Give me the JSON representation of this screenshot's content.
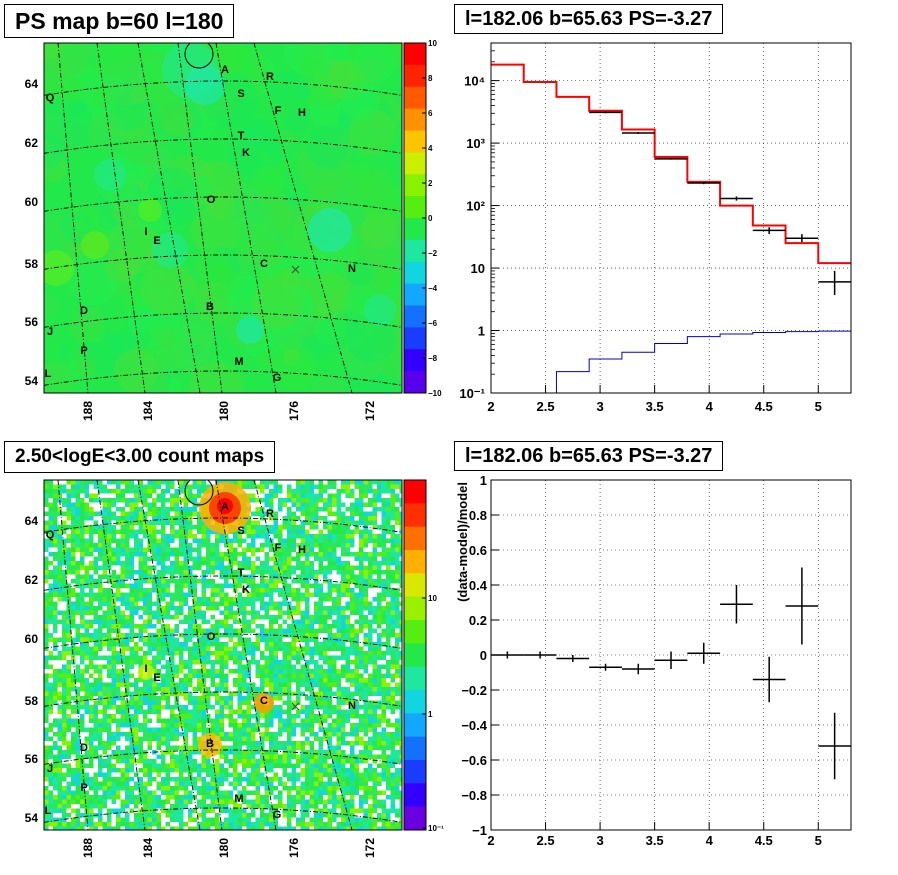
{
  "titles": {
    "top_left": "PS map b=60 l=180",
    "top_right": "l=182.06 b=65.63 PS=-3.27",
    "bottom_left": "2.50<logE<3.00 count maps",
    "bottom_right": "l=182.06 b=65.63 PS=-3.27"
  },
  "colors": {
    "map_background_ps": "#22e84a",
    "model_line": "#ff0000",
    "exposure_line": "#0000cc",
    "data_marker": "#000000"
  },
  "sky_labels": [
    "A",
    "R",
    "S",
    "Q",
    "F",
    "H",
    "T",
    "K",
    "O",
    "I",
    "E",
    "C",
    "N",
    "D",
    "B",
    "J",
    "P",
    "M",
    "L",
    "G"
  ],
  "chart_data": [
    {
      "type": "heatmap",
      "title": "PS map b=60 l=180",
      "x_ticks": [
        "188",
        "184",
        "180",
        "176",
        "172"
      ],
      "y_ticks": [
        "54",
        "56",
        "58",
        "60",
        "62",
        "64"
      ],
      "colorbar_ticks": [
        "10",
        "8",
        "6",
        "4",
        "2",
        "0",
        "−2",
        "−4",
        "−6",
        "−8",
        "−10"
      ],
      "colorbar_range": [
        -10,
        10
      ],
      "background_value": 0.5
    },
    {
      "type": "line",
      "title": "l=182.06 b=65.63 PS=-3.27",
      "yscale": "log",
      "xlim": [
        2,
        5.3
      ],
      "ylim": [
        0.1,
        40000
      ],
      "x_ticks": [
        "2",
        "2.5",
        "3",
        "3.5",
        "4",
        "4.5",
        "5"
      ],
      "y_ticks": [
        "10⁻¹",
        "1",
        "10",
        "10²",
        "10³",
        "10⁴"
      ],
      "grid": true,
      "series": [
        {
          "kind": "step",
          "edges": [
            2.0,
            2.3,
            2.6,
            2.9,
            3.2,
            3.5,
            3.8,
            4.1,
            4.4,
            4.7,
            5.0,
            5.3
          ],
          "values": [
            18000,
            9500,
            5500,
            3300,
            1650,
            600,
            240,
            100,
            48,
            25,
            12
          ]
        },
        {
          "kind": "step",
          "edges": [
            2.0,
            2.3,
            2.6,
            2.9,
            3.2,
            3.5,
            3.8,
            4.1,
            4.4,
            4.7,
            5.0,
            5.3
          ],
          "values": [
            0.07,
            0.1,
            0.22,
            0.35,
            0.45,
            0.62,
            0.8,
            0.88,
            0.93,
            0.96,
            0.98
          ]
        },
        {
          "kind": "errorbars",
          "x": [
            3.05,
            3.35,
            3.65,
            3.95,
            4.25,
            4.55,
            4.85,
            5.15
          ],
          "y": [
            3100,
            1450,
            560,
            230,
            130,
            40,
            30,
            6
          ],
          "xerr": [
            0.15,
            0.15,
            0.15,
            0.15,
            0.15,
            0.15,
            0.15,
            0.15
          ],
          "ylow": [
            3000,
            1400,
            545,
            220,
            120,
            35,
            26,
            3.7
          ],
          "yhigh": [
            3200,
            1500,
            575,
            240,
            140,
            45,
            35,
            9
          ]
        }
      ]
    },
    {
      "type": "heatmap",
      "title": "2.50<logE<3.00 count maps",
      "x_ticks": [
        "188",
        "184",
        "180",
        "176",
        "172"
      ],
      "y_ticks": [
        "54",
        "56",
        "58",
        "60",
        "62",
        "64"
      ],
      "colorbar_ticks": [
        "10",
        "1",
        "10⁻¹"
      ],
      "colorbar_scale": "log"
    },
    {
      "type": "scatter",
      "title": "l=182.06 b=65.63 PS=-3.27",
      "ylabel": "(data-model)/model",
      "xlim": [
        2,
        5.3
      ],
      "ylim": [
        -1,
        1
      ],
      "x_ticks": [
        "2",
        "2.5",
        "3",
        "3.5",
        "4",
        "4.5",
        "5"
      ],
      "y_ticks": [
        "−1",
        "−0.8",
        "−0.6",
        "−0.4",
        "−0.2",
        "0",
        "0.2",
        "0.4",
        "0.6",
        "0.8",
        "1"
      ],
      "grid": true,
      "points": [
        {
          "x": 2.15,
          "y": 0.0,
          "xerr": 0.15,
          "yerr": 0.02
        },
        {
          "x": 2.45,
          "y": 0.0,
          "xerr": 0.15,
          "yerr": 0.02
        },
        {
          "x": 2.75,
          "y": -0.02,
          "xerr": 0.15,
          "yerr": 0.02
        },
        {
          "x": 3.05,
          "y": -0.07,
          "xerr": 0.15,
          "yerr": 0.02
        },
        {
          "x": 3.35,
          "y": -0.08,
          "xerr": 0.15,
          "yerr": 0.03
        },
        {
          "x": 3.65,
          "y": -0.03,
          "xerr": 0.15,
          "yerr": 0.05
        },
        {
          "x": 3.95,
          "y": 0.01,
          "xerr": 0.15,
          "yerr": 0.06
        },
        {
          "x": 4.25,
          "y": 0.29,
          "xerr": 0.15,
          "yerr": 0.11
        },
        {
          "x": 4.55,
          "y": -0.14,
          "xerr": 0.15,
          "yerr": 0.13
        },
        {
          "x": 4.85,
          "y": 0.28,
          "xerr": 0.15,
          "yerr": 0.22
        },
        {
          "x": 5.15,
          "y": -0.52,
          "xerr": 0.15,
          "yerr": 0.19
        }
      ]
    }
  ]
}
